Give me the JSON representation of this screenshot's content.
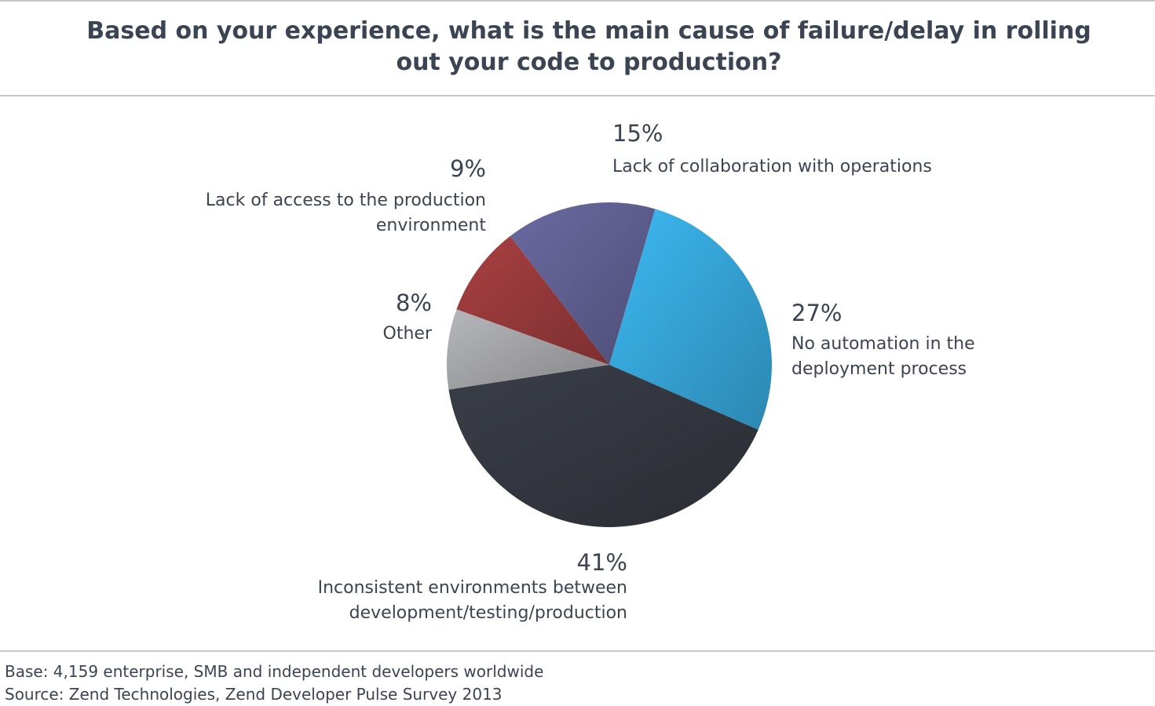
{
  "header": {
    "title_line1": "Based on your experience, what is the main cause of failure/delay in rolling",
    "title_line2": "out your code to production?"
  },
  "footer": {
    "base": "Base: 4,159 enterprise, SMB and independent developers worldwide",
    "source": "Source: Zend Technologies, Zend Developer Pulse Survey 2013"
  },
  "chart_data": {
    "type": "pie",
    "title": "Based on your experience, what is the main cause of failure/delay in rolling out your code to production?",
    "slices": [
      {
        "label_lines": [
          "Lack of collaboration with operations"
        ],
        "value": 15,
        "display": "15%",
        "color": "#5f5f91"
      },
      {
        "label_lines": [
          "No automation in the",
          "deployment process"
        ],
        "value": 27,
        "display": "27%",
        "color": "#36a5d8"
      },
      {
        "label_lines": [
          "Inconsistent environments between",
          "development/testing/production"
        ],
        "value": 41,
        "display": "41%",
        "color": "#34373f"
      },
      {
        "label_lines": [
          "Other"
        ],
        "value": 8,
        "display": "8%",
        "color": "#a3a4a7"
      },
      {
        "label_lines": [
          "Lack of access to the production",
          "environment"
        ],
        "value": 9,
        "display": "9%",
        "color": "#97393b"
      }
    ]
  }
}
